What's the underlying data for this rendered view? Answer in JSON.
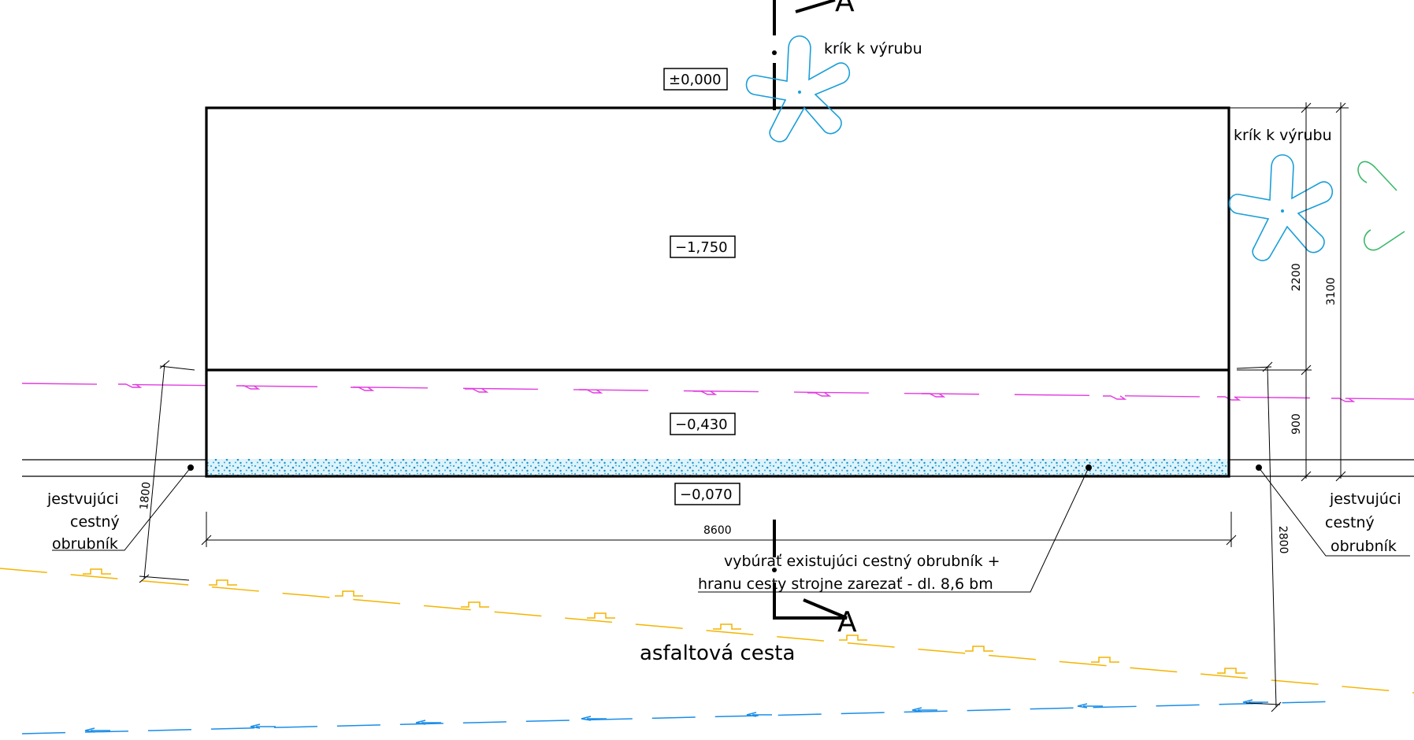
{
  "levels": {
    "top": "±0,000",
    "upper_area": "−1,750",
    "lower_area": "−0,430",
    "bottom": "−0,070"
  },
  "labels": {
    "shrub_1": "krík k výrubu",
    "shrub_2": "krík k výrubu",
    "curb_left_line1": "jestvujúci",
    "curb_left_line2": "cestný",
    "curb_left_line3": "obrubník",
    "curb_right_line1": "jestvujúci",
    "curb_right_line2": "cestný",
    "curb_right_line3": "obrubník",
    "note_line1": "vybúrať existujúci cestný obrubník +",
    "note_line2": "hranu cesty strojne zarezať - dl. 8,6 bm",
    "road": "asfaltová cesta"
  },
  "section_marks": {
    "top": "A",
    "bottom": "A"
  },
  "dimensions": {
    "width": "8600",
    "left_offset": "1800",
    "right_offset": "2800",
    "upper_height": "2200",
    "total_height": "3100",
    "lower_height": "900"
  },
  "colors": {
    "outline": "#000000",
    "shrub": "#1a9ed8",
    "shrub_existing": "#3bb86a",
    "pipe_magenta": "#e23ce0",
    "pipe_yellow": "#f4b400",
    "pipe_blue": "#1a8de8",
    "curb_hatch": "#27a9e1"
  }
}
